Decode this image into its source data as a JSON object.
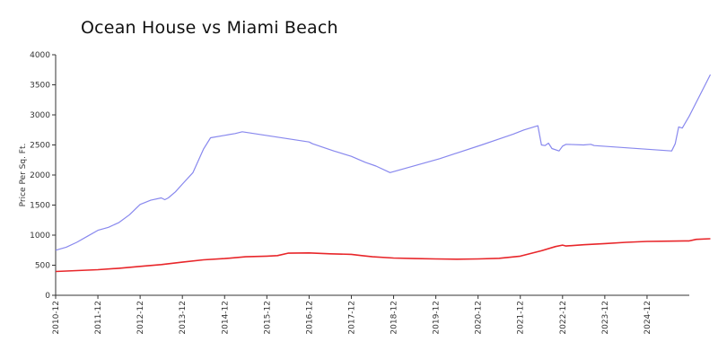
{
  "chart_data": {
    "type": "line",
    "title": "Ocean House vs Miami Beach",
    "xlabel": "",
    "ylabel": "Price Per Sq. Ft.",
    "ylim": [
      0,
      4000
    ],
    "yticks": [
      "0",
      "500",
      "1000",
      "1500",
      "2000",
      "2500",
      "3000",
      "3500",
      "4000"
    ],
    "xlim": [
      "2010-12",
      "2025-12"
    ],
    "xticks": [
      "2010-12",
      "2011-12",
      "2012-12",
      "2013-12",
      "2014-12",
      "2015-12",
      "2016-12",
      "2017-12",
      "2018-12",
      "2019-12",
      "2020-12",
      "2021-12",
      "2022-12",
      "2023-12",
      "2024-12"
    ],
    "grid": false,
    "legend": "none",
    "series": [
      {
        "color": "#8888ee",
        "points": [
          [
            "2010-12",
            750
          ],
          [
            "2011-03",
            800
          ],
          [
            "2011-06",
            880
          ],
          [
            "2011-09",
            980
          ],
          [
            "2011-12",
            1080
          ],
          [
            "2012-03",
            1130
          ],
          [
            "2012-06",
            1210
          ],
          [
            "2012-09",
            1340
          ],
          [
            "2012-12",
            1510
          ],
          [
            "2013-03",
            1580
          ],
          [
            "2013-06",
            1620
          ],
          [
            "2013-07",
            1590
          ],
          [
            "2013-08",
            1620
          ],
          [
            "2013-10",
            1720
          ],
          [
            "2013-12",
            1850
          ],
          [
            "2014-03",
            2040
          ],
          [
            "2014-06",
            2430
          ],
          [
            "2014-08",
            2620
          ],
          [
            "2014-12",
            2660
          ],
          [
            "2015-03",
            2690
          ],
          [
            "2015-05",
            2720
          ],
          [
            "2016-12",
            2550
          ],
          [
            "2017-01",
            2520
          ],
          [
            "2017-07",
            2400
          ],
          [
            "2017-12",
            2310
          ],
          [
            "2018-02",
            2260
          ],
          [
            "2018-04",
            2210
          ],
          [
            "2018-07",
            2150
          ],
          [
            "2018-11",
            2040
          ],
          [
            "2020-01",
            2270
          ],
          [
            "2021-01",
            2500
          ],
          [
            "2021-06",
            2600
          ],
          [
            "2021-10",
            2680
          ],
          [
            "2022-01",
            2750
          ],
          [
            "2022-05",
            2820
          ],
          [
            "2022-06",
            2500
          ],
          [
            "2022-07",
            2490
          ],
          [
            "2022-08",
            2530
          ],
          [
            "2022-09",
            2440
          ],
          [
            "2022-11",
            2400
          ],
          [
            "2022-12",
            2480
          ],
          [
            "2023-01",
            2510
          ],
          [
            "2023-06",
            2500
          ],
          [
            "2023-08",
            2510
          ],
          [
            "2023-09",
            2490
          ],
          [
            "2025-07",
            2400
          ],
          [
            "2025-08",
            2520
          ],
          [
            "2025-09",
            2800
          ],
          [
            "2025-10",
            2780
          ],
          [
            "2025-12",
            2980
          ],
          [
            "2026-06",
            3670
          ]
        ]
      },
      {
        "color": "#e8262a",
        "points": [
          [
            "2010-12",
            395
          ],
          [
            "2011-06",
            410
          ],
          [
            "2011-12",
            425
          ],
          [
            "2012-06",
            450
          ],
          [
            "2012-12",
            480
          ],
          [
            "2013-06",
            510
          ],
          [
            "2013-12",
            550
          ],
          [
            "2014-06",
            590
          ],
          [
            "2014-12",
            610
          ],
          [
            "2015-06",
            640
          ],
          [
            "2015-12",
            650
          ],
          [
            "2016-03",
            660
          ],
          [
            "2016-06",
            700
          ],
          [
            "2016-12",
            705
          ],
          [
            "2017-06",
            690
          ],
          [
            "2017-12",
            680
          ],
          [
            "2018-03",
            660
          ],
          [
            "2018-06",
            640
          ],
          [
            "2018-12",
            620
          ],
          [
            "2019-06",
            610
          ],
          [
            "2019-12",
            605
          ],
          [
            "2020-06",
            600
          ],
          [
            "2020-12",
            605
          ],
          [
            "2021-06",
            615
          ],
          [
            "2021-12",
            650
          ],
          [
            "2022-06",
            740
          ],
          [
            "2022-10",
            810
          ],
          [
            "2022-12",
            835
          ],
          [
            "2023-01",
            820
          ],
          [
            "2023-06",
            840
          ],
          [
            "2023-12",
            860
          ],
          [
            "2024-06",
            880
          ],
          [
            "2024-12",
            895
          ],
          [
            "2025-06",
            900
          ],
          [
            "2025-12",
            905
          ],
          [
            "2026-02",
            930
          ],
          [
            "2026-06",
            940
          ]
        ]
      }
    ]
  }
}
